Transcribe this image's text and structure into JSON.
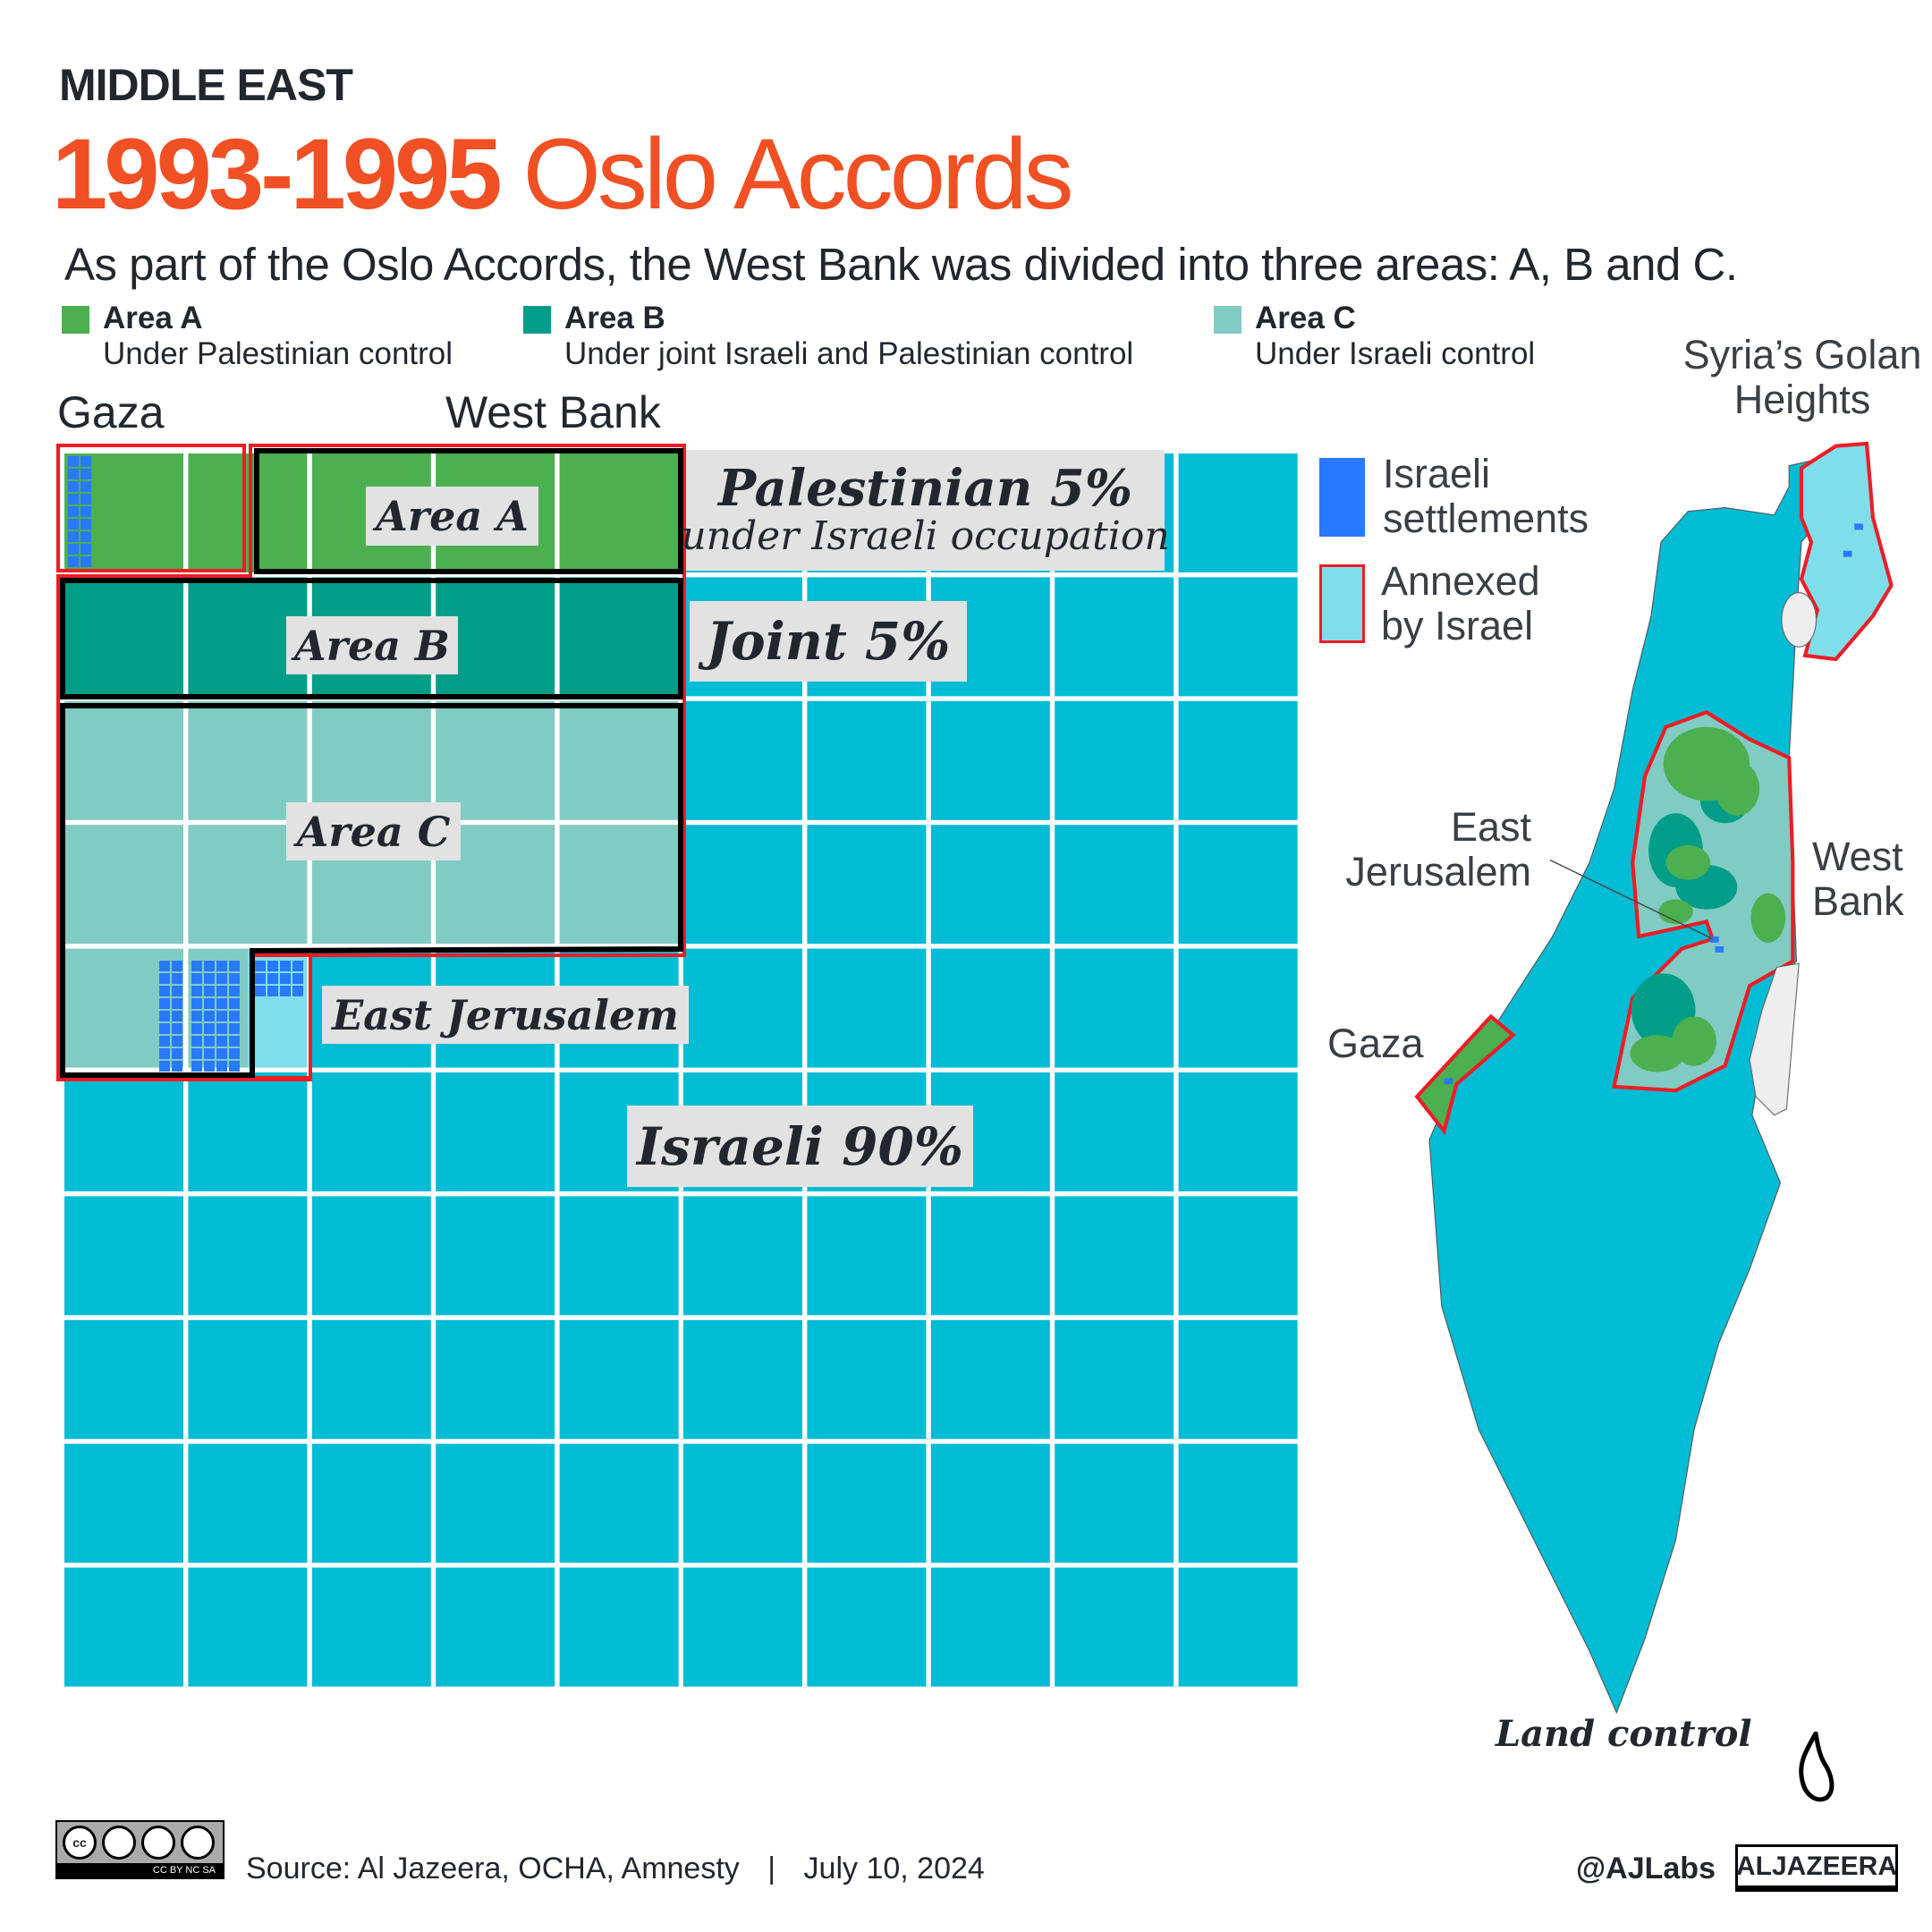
{
  "header": {
    "kicker": "MIDDLE EAST",
    "title_bold": "1993-1995",
    "title_light": "Oslo Accords",
    "subtitle": "As part of the Oslo Accords, the West Bank was divided into three areas: A, B and C."
  },
  "legend": [
    {
      "label": "Area A",
      "sublabel": "Under Palestinian control",
      "color": "#4caf50"
    },
    {
      "label": "Area B",
      "sublabel": "Under joint Israeli and Palestinian control",
      "color": "#009e88"
    },
    {
      "label": "Area C",
      "sublabel": "Under Israeli control",
      "color": "#80cbc4"
    }
  ],
  "colors": {
    "israeli": "#00bcd5",
    "annexed": "#80deea",
    "settlement": "#2979ff",
    "border_annexed": "#ee1c25",
    "title": "#f05023"
  },
  "chart_data": {
    "type": "waffle",
    "grid": "10x10",
    "section_labels": [
      "Gaza",
      "West Bank"
    ],
    "area_labels": {
      "a": "Area A",
      "b": "Area B",
      "c": "Area C",
      "ej": "East Jerusalem"
    },
    "segments": [
      {
        "name": "Palestinian",
        "value": 5,
        "label": "Palestinian 5%",
        "sublabel": "under Israeli occupation"
      },
      {
        "name": "Joint",
        "value": 5,
        "label": "Joint 5%"
      },
      {
        "name": "Israeli",
        "value": 90,
        "label": "Israeli 90%"
      }
    ],
    "composition": {
      "gaza_cells": 1.5,
      "area_a_cells": 3.5,
      "area_b_cells": 5,
      "area_c_cells": 11.5,
      "east_jerusalem_cells": 0.5
    },
    "settlement_marks": {
      "gaza": 18,
      "west_bank": 54,
      "east_jerusalem": 12
    }
  },
  "map": {
    "title": "Land control",
    "legend": [
      {
        "label": "Israeli settlements"
      },
      {
        "label": "Annexed by Israel"
      }
    ],
    "labels": {
      "golan": "Syria’s Golan Heights",
      "east_jerusalem": "East Jerusalem",
      "west_bank": "West Bank",
      "gaza": "Gaza"
    }
  },
  "footer": {
    "source": "Source: Al Jazeera, OCHA, Amnesty",
    "separator": "|",
    "date": "July 10, 2024",
    "handle": "@AJLabs",
    "brand": "ALJAZEERA",
    "license": "CC BY NC SA"
  }
}
